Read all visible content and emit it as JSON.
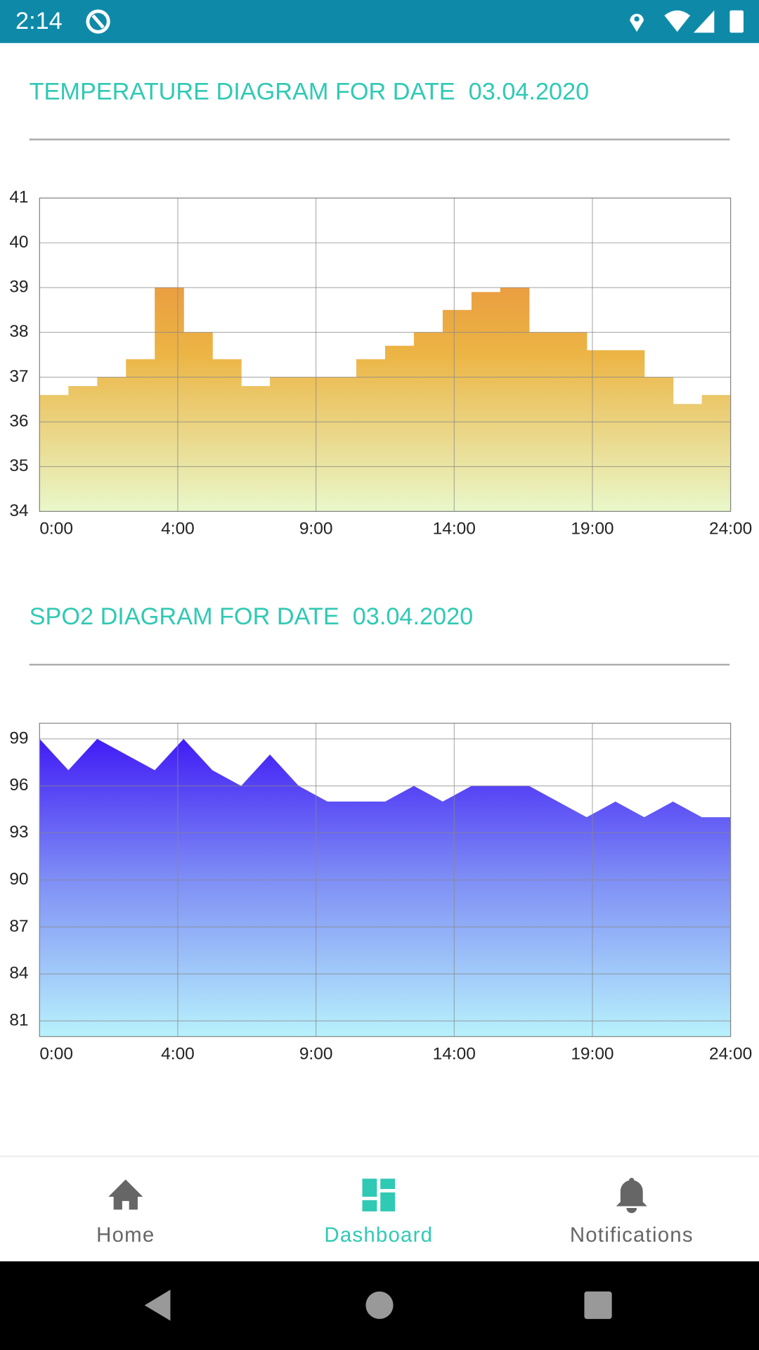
{
  "status_bar": {
    "time": "2:14"
  },
  "chart_data": [
    {
      "type": "step",
      "title": "TEMPERATURE DIAGRAM FOR DATE  03.04.2020",
      "x": [
        0,
        1,
        2,
        3,
        4,
        5,
        6,
        7,
        8,
        9,
        10,
        11,
        12,
        13,
        14,
        15,
        16,
        17,
        18,
        19,
        20,
        21,
        22,
        23
      ],
      "values": [
        36.6,
        36.8,
        37.0,
        37.4,
        39.0,
        38.0,
        37.4,
        36.8,
        37.0,
        37.0,
        37.0,
        37.4,
        37.7,
        38.0,
        38.5,
        38.9,
        39.0,
        38.0,
        38.0,
        37.6,
        37.6,
        37.0,
        36.4,
        36.6
      ],
      "xlim": [
        0,
        24
      ],
      "ylim": [
        34,
        41
      ],
      "yticks": [
        34,
        35,
        36,
        37,
        38,
        39,
        40,
        41
      ],
      "xticks": [
        {
          "value": 0,
          "label": "0:00"
        },
        {
          "value": 4.8,
          "label": "4:00"
        },
        {
          "value": 9.6,
          "label": "9:00"
        },
        {
          "value": 14.4,
          "label": "14:00"
        },
        {
          "value": 19.2,
          "label": "19:00"
        },
        {
          "value": 24,
          "label": "24:00"
        }
      ],
      "grid": true,
      "gradient": [
        "#e8803a",
        "#ecb545",
        "#e9f8ca"
      ]
    },
    {
      "type": "area",
      "title": "SPO2 DIAGRAM FOR DATE  03.04.2020",
      "x": [
        0,
        1,
        2,
        3,
        4,
        5,
        6,
        7,
        8,
        9,
        10,
        11,
        12,
        13,
        14,
        15,
        16,
        17,
        18,
        19,
        20,
        21,
        22,
        23,
        24
      ],
      "values": [
        99,
        97,
        99,
        98,
        97,
        99,
        97,
        96,
        98,
        96,
        95,
        95,
        95,
        96,
        95,
        96,
        96,
        96,
        95,
        94,
        95,
        94,
        95,
        94,
        94
      ],
      "xlim": [
        0,
        24
      ],
      "ylim": [
        80,
        100
      ],
      "yticks": [
        81,
        84,
        87,
        90,
        93,
        96,
        99
      ],
      "xticks": [
        {
          "value": 0,
          "label": "0:00"
        },
        {
          "value": 4.8,
          "label": "4:00"
        },
        {
          "value": 9.6,
          "label": "9:00"
        },
        {
          "value": 14.4,
          "label": "14:00"
        },
        {
          "value": 19.2,
          "label": "19:00"
        },
        {
          "value": 24,
          "label": "24:00"
        }
      ],
      "grid": true,
      "gradient": [
        "#3a0ff5",
        "#7f8ff5",
        "#b8f2fc"
      ]
    }
  ],
  "nav": {
    "items": [
      {
        "label": "Home",
        "active": false
      },
      {
        "label": "Dashboard",
        "active": true
      },
      {
        "label": "Notifications",
        "active": false
      }
    ],
    "active_color": "#30c9b4",
    "color": "#666666"
  }
}
